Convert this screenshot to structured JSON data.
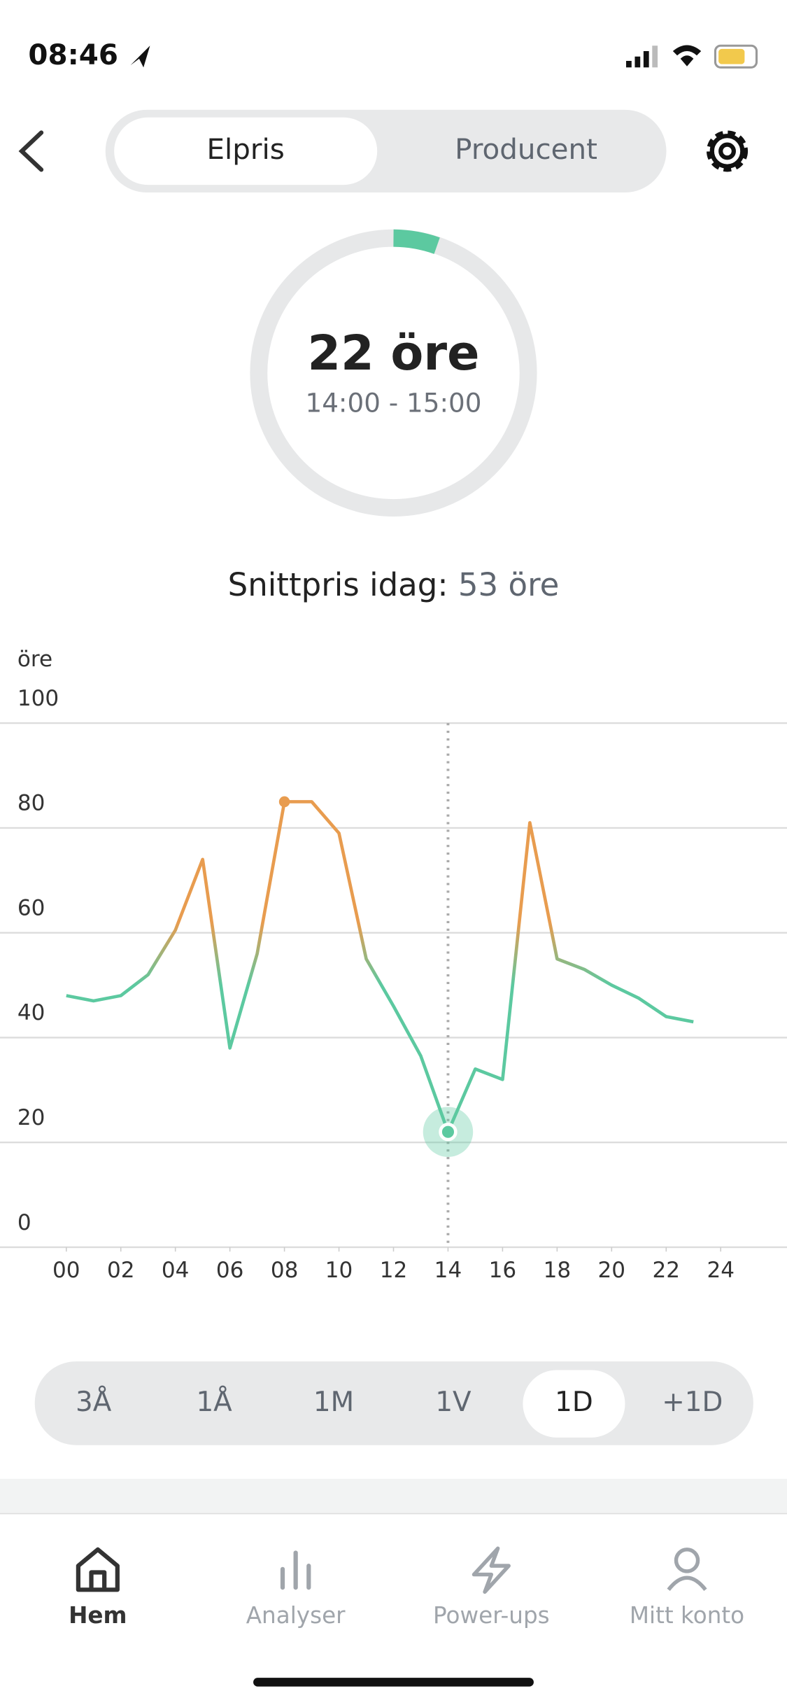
{
  "status_bar": {
    "time": "08:46"
  },
  "tabs": [
    "Elpris",
    "Producent"
  ],
  "gauge": {
    "price": "22 öre",
    "period": "14:00 - 15:00"
  },
  "average": {
    "label": "Snittpris idag:",
    "value": "53 öre"
  },
  "chart_data": {
    "type": "line",
    "y_label": "öre",
    "x": [
      0,
      1,
      2,
      3,
      4,
      5,
      6,
      7,
      8,
      9,
      10,
      11,
      12,
      13,
      14,
      15,
      16,
      17,
      18,
      19,
      20,
      21,
      22,
      23
    ],
    "values": [
      48,
      47,
      48,
      52,
      60.5,
      74,
      38,
      56,
      85,
      85,
      79,
      55,
      46,
      36.5,
      22,
      34,
      32,
      81,
      55,
      53,
      50,
      47.5,
      44,
      43
    ],
    "color_high": "#e89c4f",
    "color_low": "#5cc9a0",
    "xlim": [
      0,
      24
    ],
    "xticks": [
      {
        "value": 0,
        "label": "00"
      },
      {
        "value": 2,
        "label": "02"
      },
      {
        "value": 4,
        "label": "04"
      },
      {
        "value": 6,
        "label": "06"
      },
      {
        "value": 8,
        "label": "08"
      },
      10,
      12,
      14,
      16,
      18,
      20,
      22,
      24
    ],
    "ylim": [
      0,
      100
    ],
    "yticks": [
      0,
      20,
      40,
      60,
      80,
      100
    ],
    "grid": true,
    "highlight_x": 14
  },
  "ranges": [
    "3Å",
    "1Å",
    "1M",
    "1V",
    "1D",
    "+1D"
  ],
  "nav": [
    "Hem",
    "Analyser",
    "Power-ups",
    "Mitt konto"
  ]
}
